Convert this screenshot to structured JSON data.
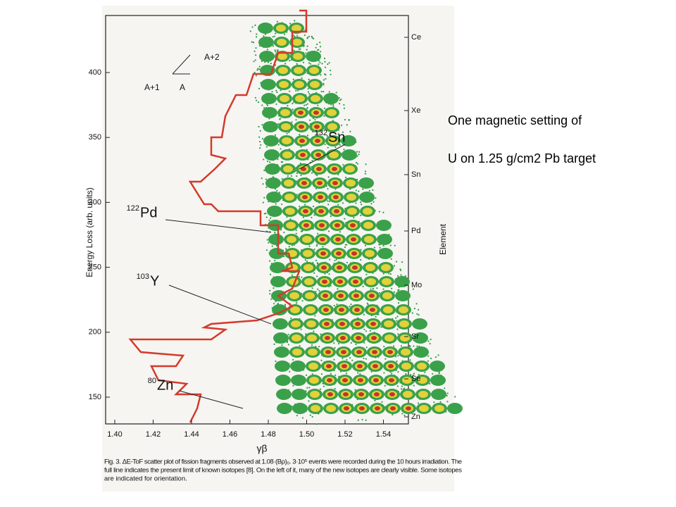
{
  "slide": {
    "text": [
      "One magnetic setting of",
      "U on 1.25 g/cm2  Pb target"
    ]
  },
  "figure": {
    "x_ticks": [
      "1.40",
      "1.42",
      "1.44",
      "1.46",
      "1.48",
      "1.50",
      "1.52",
      "1.54"
    ],
    "y_ticks": [
      "400",
      "350",
      "300",
      "250",
      "200",
      "150"
    ],
    "x_label": "γβ",
    "y_label": "Energy Loss (arb. units)",
    "right_label": "Element",
    "elements": [
      "Ce",
      "Xe",
      "Sn",
      "Pd",
      "Mo",
      "Sr",
      "Se",
      "Zn"
    ],
    "isotopes": [
      {
        "mass": "132",
        "symbol": "Sn"
      },
      {
        "mass": "122",
        "symbol": "Pd"
      },
      {
        "mass": "103",
        "symbol": "Y"
      },
      {
        "mass": "80",
        "symbol": "Zn"
      }
    ],
    "arrows": [
      "A+2",
      "A+1",
      "A"
    ],
    "caption": [
      "Fig. 3. ΔE-ToF scatter plot of fission fragments observed at 1.08·(Bρ)₀. 3·10⁵ events were recorded during the 10 hours irradiation. The",
      "full line indicates the present limit of known isotopes [8]. On the left of it, many of the new isotopes are clearly visible. Some isotopes",
      "are indicated for orientation."
    ]
  }
}
